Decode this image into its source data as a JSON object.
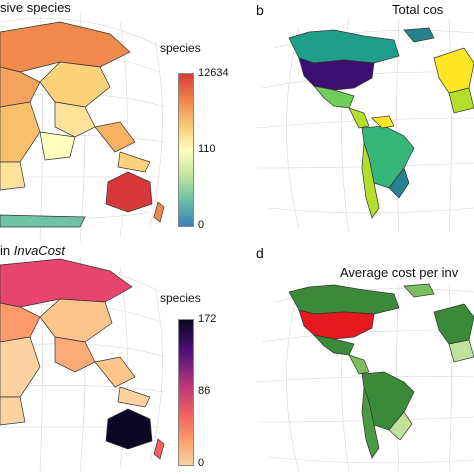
{
  "panels": {
    "a": {
      "title": "sive species",
      "legend_title": "species",
      "ticks": [
        "12634",
        "110",
        "0"
      ]
    },
    "b": {
      "letter": "b",
      "title": "Total cos"
    },
    "c": {
      "title_prefix": "in ",
      "title_italic": "InvaCost",
      "legend_title": "species",
      "ticks": [
        "172",
        "86",
        "0"
      ]
    },
    "d": {
      "letter": "d",
      "title": "Average cost per inv"
    }
  },
  "colors": {
    "spectral_scale": [
      "#d7393b",
      "#f08a4c",
      "#fbd17a",
      "#fefebd",
      "#c6e79c",
      "#6fc3a5",
      "#3a7fb9"
    ],
    "magma_scale": [
      "#0b0724",
      "#51127c",
      "#b73779",
      "#f1605d",
      "#fc9a6b",
      "#fbd2a0"
    ],
    "viridis_dark": "#3b0f70",
    "teal": "#2b8f8e",
    "green_dark": "#3a8a3a",
    "green_light": "#bfe39b",
    "red": "#e5191e"
  }
}
